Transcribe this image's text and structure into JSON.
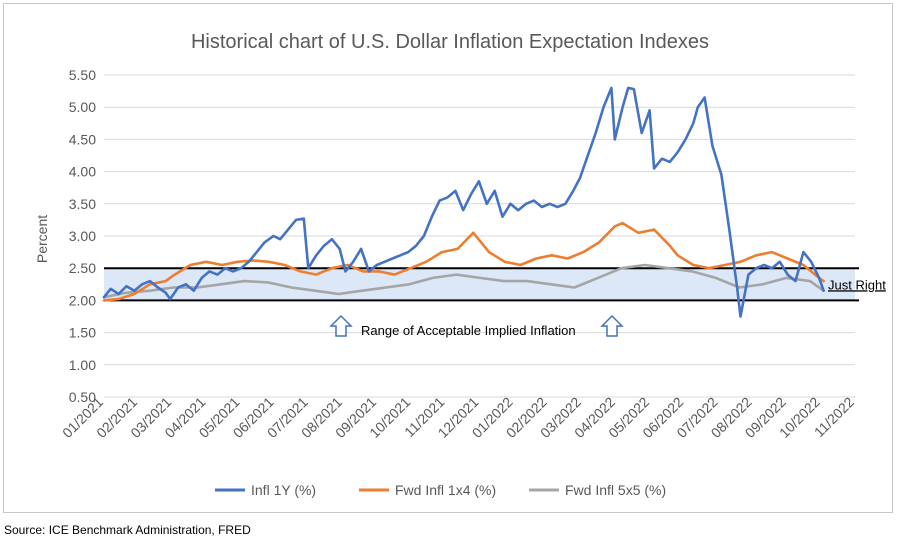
{
  "chart_data": {
    "type": "line",
    "title": "Historical chart of U.S. Dollar Inflation Expectation Indexes",
    "ylabel": "Percent",
    "xlabel": "",
    "ylim": [
      0.5,
      5.5
    ],
    "y_ticks": [
      "0.50",
      "1.00",
      "1.50",
      "2.00",
      "2.50",
      "3.00",
      "3.50",
      "4.00",
      "4.50",
      "5.00",
      "5.50"
    ],
    "x_range": [
      "2021-01-01",
      "2022-11-01"
    ],
    "x_ticks": [
      "01/2021",
      "02/2021",
      "03/2021",
      "04/2021",
      "05/2021",
      "06/2021",
      "07/2021",
      "08/2021",
      "09/2021",
      "10/2021",
      "11/2021",
      "12/2021",
      "01/2022",
      "02/2022",
      "03/2022",
      "04/2022",
      "05/2022",
      "06/2022",
      "07/2022",
      "08/2022",
      "09/2022",
      "10/2022",
      "11/2022"
    ],
    "grid": "horizontal",
    "legend_position": "bottom",
    "band": {
      "low": 2.0,
      "high": 2.5,
      "fill": "#dce8f7",
      "label": "Just Right"
    },
    "annotation": "Range of Acceptable Implied Inflation",
    "series": [
      {
        "name": "Infl 1Y (%)",
        "color": "#4472c4",
        "points": [
          [
            "2021-01-01",
            2.05
          ],
          [
            "2021-01-07",
            2.18
          ],
          [
            "2021-01-14",
            2.1
          ],
          [
            "2021-01-21",
            2.22
          ],
          [
            "2021-01-28",
            2.15
          ],
          [
            "2021-02-04",
            2.25
          ],
          [
            "2021-02-11",
            2.3
          ],
          [
            "2021-02-18",
            2.2
          ],
          [
            "2021-02-25",
            2.12
          ],
          [
            "2021-03-01",
            2.02
          ],
          [
            "2021-03-08",
            2.2
          ],
          [
            "2021-03-15",
            2.25
          ],
          [
            "2021-03-22",
            2.15
          ],
          [
            "2021-03-29",
            2.35
          ],
          [
            "2021-04-05",
            2.45
          ],
          [
            "2021-04-12",
            2.4
          ],
          [
            "2021-04-19",
            2.5
          ],
          [
            "2021-04-26",
            2.45
          ],
          [
            "2021-05-03",
            2.5
          ],
          [
            "2021-05-10",
            2.6
          ],
          [
            "2021-05-17",
            2.75
          ],
          [
            "2021-05-24",
            2.9
          ],
          [
            "2021-06-01",
            3.0
          ],
          [
            "2021-06-07",
            2.95
          ],
          [
            "2021-06-14",
            3.1
          ],
          [
            "2021-06-21",
            3.25
          ],
          [
            "2021-06-28",
            3.27
          ],
          [
            "2021-07-02",
            2.5
          ],
          [
            "2021-07-09",
            2.7
          ],
          [
            "2021-07-16",
            2.85
          ],
          [
            "2021-07-23",
            2.95
          ],
          [
            "2021-07-30",
            2.8
          ],
          [
            "2021-08-04",
            2.45
          ],
          [
            "2021-08-11",
            2.6
          ],
          [
            "2021-08-18",
            2.8
          ],
          [
            "2021-08-25",
            2.45
          ],
          [
            "2021-09-01",
            2.55
          ],
          [
            "2021-09-08",
            2.6
          ],
          [
            "2021-09-15",
            2.65
          ],
          [
            "2021-09-22",
            2.7
          ],
          [
            "2021-09-29",
            2.75
          ],
          [
            "2021-10-06",
            2.85
          ],
          [
            "2021-10-13",
            3.0
          ],
          [
            "2021-10-20",
            3.3
          ],
          [
            "2021-10-27",
            3.55
          ],
          [
            "2021-11-03",
            3.6
          ],
          [
            "2021-11-10",
            3.7
          ],
          [
            "2021-11-17",
            3.4
          ],
          [
            "2021-11-24",
            3.65
          ],
          [
            "2021-12-01",
            3.85
          ],
          [
            "2021-12-08",
            3.5
          ],
          [
            "2021-12-15",
            3.7
          ],
          [
            "2021-12-22",
            3.3
          ],
          [
            "2021-12-29",
            3.5
          ],
          [
            "2022-01-05",
            3.4
          ],
          [
            "2022-01-12",
            3.5
          ],
          [
            "2022-01-19",
            3.55
          ],
          [
            "2022-01-26",
            3.45
          ],
          [
            "2022-02-02",
            3.5
          ],
          [
            "2022-02-09",
            3.45
          ],
          [
            "2022-02-16",
            3.5
          ],
          [
            "2022-02-23",
            3.7
          ],
          [
            "2022-03-01",
            3.9
          ],
          [
            "2022-03-08",
            4.25
          ],
          [
            "2022-03-15",
            4.6
          ],
          [
            "2022-03-22",
            5.0
          ],
          [
            "2022-03-29",
            5.3
          ],
          [
            "2022-04-01",
            4.5
          ],
          [
            "2022-04-08",
            5.0
          ],
          [
            "2022-04-13",
            5.3
          ],
          [
            "2022-04-18",
            5.28
          ],
          [
            "2022-04-25",
            4.6
          ],
          [
            "2022-05-02",
            4.95
          ],
          [
            "2022-05-06",
            4.05
          ],
          [
            "2022-05-13",
            4.2
          ],
          [
            "2022-05-20",
            4.15
          ],
          [
            "2022-05-27",
            4.3
          ],
          [
            "2022-06-03",
            4.5
          ],
          [
            "2022-06-10",
            4.75
          ],
          [
            "2022-06-14",
            5.0
          ],
          [
            "2022-06-20",
            5.15
          ],
          [
            "2022-06-27",
            4.4
          ],
          [
            "2022-07-05",
            3.95
          ],
          [
            "2022-07-12",
            3.1
          ],
          [
            "2022-07-19",
            2.2
          ],
          [
            "2022-07-22",
            1.75
          ],
          [
            "2022-07-29",
            2.4
          ],
          [
            "2022-08-05",
            2.5
          ],
          [
            "2022-08-12",
            2.55
          ],
          [
            "2022-08-19",
            2.5
          ],
          [
            "2022-08-26",
            2.6
          ],
          [
            "2022-09-02",
            2.4
          ],
          [
            "2022-09-09",
            2.3
          ],
          [
            "2022-09-16",
            2.75
          ],
          [
            "2022-09-23",
            2.6
          ],
          [
            "2022-09-30",
            2.35
          ],
          [
            "2022-10-04",
            2.15
          ]
        ]
      },
      {
        "name": "Fwd Infl 1x4 (%)",
        "color": "#ed7d31",
        "points": [
          [
            "2021-01-01",
            2.0
          ],
          [
            "2021-01-14",
            2.02
          ],
          [
            "2021-01-28",
            2.1
          ],
          [
            "2021-02-11",
            2.25
          ],
          [
            "2021-02-25",
            2.3
          ],
          [
            "2021-03-05",
            2.4
          ],
          [
            "2021-03-19",
            2.55
          ],
          [
            "2021-04-02",
            2.6
          ],
          [
            "2021-04-16",
            2.55
          ],
          [
            "2021-04-30",
            2.6
          ],
          [
            "2021-05-14",
            2.62
          ],
          [
            "2021-05-28",
            2.6
          ],
          [
            "2021-06-11",
            2.55
          ],
          [
            "2021-06-25",
            2.45
          ],
          [
            "2021-07-09",
            2.4
          ],
          [
            "2021-07-23",
            2.5
          ],
          [
            "2021-08-06",
            2.55
          ],
          [
            "2021-08-20",
            2.45
          ],
          [
            "2021-09-03",
            2.45
          ],
          [
            "2021-09-17",
            2.4
          ],
          [
            "2021-10-01",
            2.5
          ],
          [
            "2021-10-15",
            2.6
          ],
          [
            "2021-10-29",
            2.75
          ],
          [
            "2021-11-12",
            2.8
          ],
          [
            "2021-11-26",
            3.05
          ],
          [
            "2021-12-03",
            2.9
          ],
          [
            "2021-12-10",
            2.75
          ],
          [
            "2021-12-24",
            2.6
          ],
          [
            "2022-01-07",
            2.55
          ],
          [
            "2022-01-21",
            2.65
          ],
          [
            "2022-02-04",
            2.7
          ],
          [
            "2022-02-18",
            2.65
          ],
          [
            "2022-03-04",
            2.75
          ],
          [
            "2022-03-18",
            2.9
          ],
          [
            "2022-04-01",
            3.15
          ],
          [
            "2022-04-08",
            3.2
          ],
          [
            "2022-04-22",
            3.05
          ],
          [
            "2022-05-06",
            3.1
          ],
          [
            "2022-05-20",
            2.85
          ],
          [
            "2022-05-27",
            2.7
          ],
          [
            "2022-06-10",
            2.55
          ],
          [
            "2022-06-24",
            2.5
          ],
          [
            "2022-07-08",
            2.55
          ],
          [
            "2022-07-22",
            2.6
          ],
          [
            "2022-08-05",
            2.7
          ],
          [
            "2022-08-19",
            2.75
          ],
          [
            "2022-09-02",
            2.65
          ],
          [
            "2022-09-16",
            2.55
          ],
          [
            "2022-09-30",
            2.35
          ],
          [
            "2022-10-04",
            2.3
          ]
        ]
      },
      {
        "name": "Fwd Infl 5x5 (%)",
        "color": "#a5a5a5",
        "points": [
          [
            "2021-01-01",
            2.05
          ],
          [
            "2021-01-21",
            2.12
          ],
          [
            "2021-02-11",
            2.15
          ],
          [
            "2021-03-04",
            2.2
          ],
          [
            "2021-03-25",
            2.2
          ],
          [
            "2021-04-15",
            2.25
          ],
          [
            "2021-05-06",
            2.3
          ],
          [
            "2021-05-27",
            2.28
          ],
          [
            "2021-06-17",
            2.2
          ],
          [
            "2021-07-08",
            2.15
          ],
          [
            "2021-07-29",
            2.1
          ],
          [
            "2021-08-19",
            2.15
          ],
          [
            "2021-09-09",
            2.2
          ],
          [
            "2021-09-30",
            2.25
          ],
          [
            "2021-10-21",
            2.35
          ],
          [
            "2021-11-11",
            2.4
          ],
          [
            "2021-12-02",
            2.35
          ],
          [
            "2021-12-23",
            2.3
          ],
          [
            "2022-01-13",
            2.3
          ],
          [
            "2022-02-03",
            2.25
          ],
          [
            "2022-02-24",
            2.2
          ],
          [
            "2022-03-17",
            2.35
          ],
          [
            "2022-04-07",
            2.5
          ],
          [
            "2022-04-28",
            2.55
          ],
          [
            "2022-05-19",
            2.5
          ],
          [
            "2022-06-09",
            2.45
          ],
          [
            "2022-06-30",
            2.35
          ],
          [
            "2022-07-21",
            2.2
          ],
          [
            "2022-08-11",
            2.25
          ],
          [
            "2022-09-01",
            2.35
          ],
          [
            "2022-09-22",
            2.3
          ],
          [
            "2022-10-04",
            2.15
          ]
        ]
      }
    ]
  },
  "footer": {
    "source": "Source: ICE Benchmark Administration, FRED"
  }
}
